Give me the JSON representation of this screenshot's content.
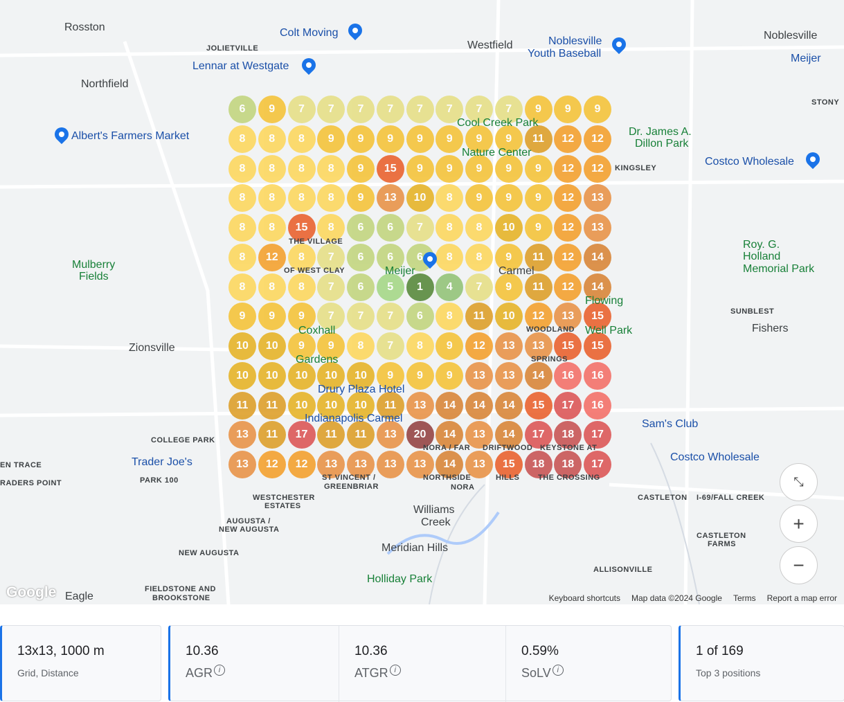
{
  "map": {
    "labels": [
      "Rosston",
      "Colt Moving",
      "JOLIETVILLE",
      "Westfield",
      "Noblesville",
      "Youth Baseball",
      "Noblesville",
      "Meijer",
      "Lennar at Westgate",
      "Northfield",
      "STONY",
      "Albert's Farmers Market",
      "Dr. James A.",
      "Dillon Park",
      "Costco Wholesale",
      "KINGSLEY",
      "Mulberry",
      "Fields",
      "Roy. G.",
      "Holland",
      "Memorial Park",
      "SUNBLEST",
      "Fishers",
      "Zionsville",
      "Sam's Club",
      "Costco Wholesale",
      "COLLEGE PARK",
      "EN TRACE",
      "RADERS POINT",
      "PARK 100",
      "Trader Joe's",
      "CASTLETON",
      "I-69/FALL CREEK",
      "WESTCHESTER",
      "ESTATES",
      "Williams",
      "Creek",
      "AUGUSTA /",
      "NEW AUGUSTA",
      "CASTLETON",
      "FARMS",
      "NEW AUGUSTA",
      "Meridian Hills",
      "ALLISONVILLE",
      "Holliday Park",
      "Eagle",
      "FIELDSTONE AND",
      "BROOKSTONE"
    ],
    "overlay_labels": [
      "Cool Creek Park",
      "Nature Center",
      "THE VILLAGE",
      "OF WEST CLAY",
      "Meijer",
      "Carmel",
      "Flowing",
      "Well Park",
      "Coxhall",
      "Gardens",
      "WOODLAND",
      "SPRINGS",
      "Drury Plaza Hotel",
      "Indianapolis Carmel",
      "NORA / FAR",
      "NORTHSIDE",
      "DRIFTWOOD",
      "HILLS",
      "KEYSTONE AT",
      "THE CROSSING",
      "ST VINCENT /",
      "GREENBRIAR",
      "NORA"
    ],
    "attribution": {
      "keyboard": "Keyboard shortcuts",
      "data": "Map data ©2024 Google",
      "terms": "Terms",
      "report": "Report a map error"
    },
    "logo": "Google",
    "controls": {
      "fullscreen": "exit-fullscreen-icon",
      "zoom_in": "+",
      "zoom_out": "−"
    }
  },
  "grid": {
    "size": "13x13",
    "ranks": [
      [
        6,
        9,
        7,
        7,
        7,
        7,
        7,
        7,
        7,
        7,
        9,
        9,
        9
      ],
      [
        8,
        8,
        8,
        9,
        9,
        9,
        9,
        9,
        9,
        9,
        11,
        12,
        12
      ],
      [
        8,
        8,
        8,
        8,
        9,
        15,
        9,
        9,
        9,
        9,
        9,
        12,
        12
      ],
      [
        8,
        8,
        8,
        8,
        9,
        13,
        10,
        8,
        9,
        9,
        9,
        12,
        13
      ],
      [
        8,
        8,
        15,
        8,
        6,
        6,
        7,
        8,
        8,
        10,
        9,
        12,
        13
      ],
      [
        8,
        12,
        8,
        7,
        6,
        6,
        6,
        8,
        8,
        9,
        11,
        12,
        14
      ],
      [
        8,
        8,
        8,
        7,
        6,
        5,
        1,
        4,
        7,
        9,
        11,
        12,
        14
      ],
      [
        9,
        9,
        9,
        7,
        7,
        7,
        6,
        8,
        11,
        10,
        12,
        13,
        15
      ],
      [
        10,
        10,
        9,
        9,
        8,
        7,
        8,
        9,
        12,
        13,
        13,
        15,
        15
      ],
      [
        10,
        10,
        10,
        10,
        10,
        9,
        9,
        9,
        13,
        13,
        14,
        16,
        16
      ],
      [
        11,
        11,
        10,
        10,
        10,
        11,
        13,
        14,
        14,
        14,
        15,
        17,
        16
      ],
      [
        13,
        11,
        17,
        11,
        11,
        13,
        20,
        14,
        13,
        14,
        17,
        18,
        17
      ],
      [
        13,
        12,
        12,
        13,
        13,
        13,
        13,
        14,
        13,
        15,
        18,
        18,
        17
      ]
    ],
    "colors": {
      "1": "#5a8a3e",
      "4": "#94c47a",
      "5": "#a6d888",
      "6": "#c3d680",
      "7": "#e6e088",
      "8": "#fdd860",
      "9": "#f5c43c",
      "10": "#e6b42a",
      "11": "#dea02c",
      "12": "#f4a230",
      "13": "#e9944a",
      "14": "#d9873a",
      "15": "#ea6430",
      "16": "#f4726a",
      "17": "#dc5858",
      "18": "#c95656",
      "20": "#964646"
    }
  },
  "stats": {
    "grid": {
      "value": "13x13, 1000 m",
      "label": "Grid, Distance"
    },
    "agr": {
      "value": "10.36",
      "label": "AGR"
    },
    "atgr": {
      "value": "10.36",
      "label": "ATGR"
    },
    "solv": {
      "value": "0.59%",
      "label": "SoLV"
    },
    "top": {
      "value": "1 of 169",
      "label": "Top 3 positions"
    },
    "info_icon": "i"
  }
}
